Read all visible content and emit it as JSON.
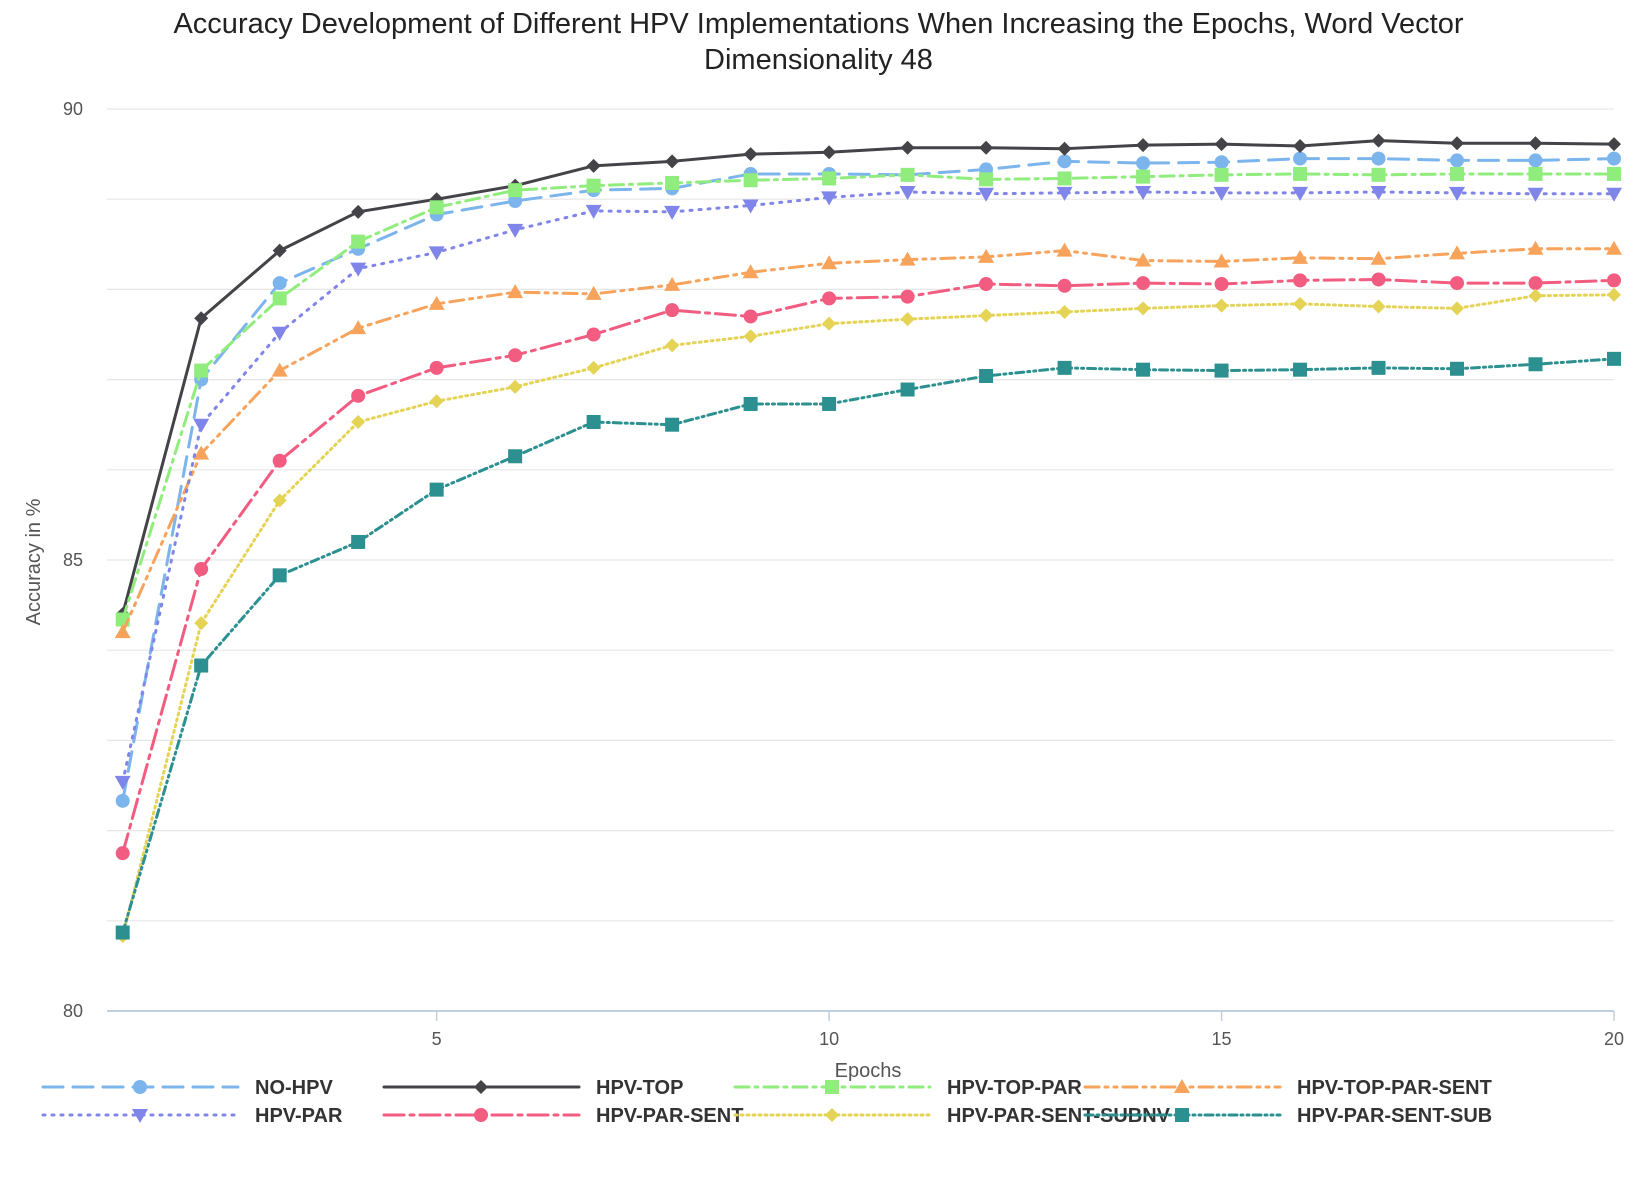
{
  "chart_data": {
    "type": "line",
    "title_line1": "Accuracy Development of Different HPV Implementations When Increasing the Epochs, Word Vector",
    "title_line2": "Dimensionality 48",
    "xlabel": "Epochs",
    "ylabel": "Accuracy in %",
    "xlim": [
      0.8,
      20
    ],
    "ylim": [
      80,
      90
    ],
    "xticks": [
      5,
      10,
      15,
      20
    ],
    "yticks": [
      80,
      85,
      90
    ],
    "grid": true,
    "legend_position": "bottom",
    "x": [
      1,
      2,
      3,
      4,
      5,
      6,
      7,
      8,
      9,
      10,
      11,
      12,
      13,
      14,
      15,
      16,
      17,
      18,
      19,
      20
    ],
    "series": [
      {
        "name": "NO-HPV",
        "color": "#7cb5ec",
        "dash": "20,10",
        "marker": "circle",
        "values": [
          82.33,
          87.0,
          88.07,
          88.45,
          88.83,
          88.98,
          89.1,
          89.12,
          89.28,
          89.28,
          89.27,
          89.33,
          89.42,
          89.4,
          89.41,
          89.45,
          89.45,
          89.43,
          89.43,
          89.45
        ]
      },
      {
        "name": "HPV-TOP",
        "color": "#434348",
        "dash": "",
        "marker": "diamond",
        "values": [
          84.4,
          87.68,
          88.43,
          88.86,
          89.0,
          89.15,
          89.37,
          89.42,
          89.5,
          89.52,
          89.57,
          89.57,
          89.56,
          89.6,
          89.61,
          89.59,
          89.65,
          89.62,
          89.62,
          89.61
        ]
      },
      {
        "name": "HPV-TOP-PAR",
        "color": "#90ed7d",
        "dash": "14,6,3,6",
        "marker": "square",
        "values": [
          84.34,
          87.1,
          87.9,
          88.53,
          88.91,
          89.1,
          89.15,
          89.18,
          89.21,
          89.23,
          89.27,
          89.22,
          89.23,
          89.25,
          89.27,
          89.28,
          89.27,
          89.28,
          89.28,
          89.28
        ]
      },
      {
        "name": "HPV-TOP-PAR-SENT",
        "color": "#f7a35c",
        "dash": "14,6,3,6,3,6",
        "marker": "triangle",
        "values": [
          84.2,
          86.18,
          87.1,
          87.57,
          87.84,
          87.97,
          87.95,
          88.05,
          88.19,
          88.29,
          88.33,
          88.36,
          88.43,
          88.32,
          88.31,
          88.35,
          88.34,
          88.4,
          88.45,
          88.45
        ]
      },
      {
        "name": "HPV-PAR",
        "color": "#8085e9",
        "dash": "2,7",
        "marker": "triangle-down",
        "values": [
          82.54,
          86.5,
          87.52,
          88.23,
          88.41,
          88.66,
          88.87,
          88.86,
          88.93,
          89.02,
          89.08,
          89.06,
          89.07,
          89.08,
          89.07,
          89.07,
          89.08,
          89.07,
          89.06,
          89.06
        ]
      },
      {
        "name": "HPV-PAR-SENT",
        "color": "#f15c80",
        "dash": "20,6,4,6",
        "marker": "circle",
        "values": [
          81.75,
          84.9,
          86.1,
          86.82,
          87.13,
          87.27,
          87.5,
          87.77,
          87.7,
          87.9,
          87.92,
          88.06,
          88.04,
          88.07,
          88.06,
          88.1,
          88.11,
          88.07,
          88.07,
          88.1
        ]
      },
      {
        "name": "HPV-PAR-SENT-SUBNV",
        "color": "#e4d354",
        "dash": "2,4",
        "marker": "diamond",
        "values": [
          80.83,
          84.3,
          85.66,
          86.53,
          86.76,
          86.92,
          87.13,
          87.38,
          87.48,
          87.62,
          87.67,
          87.71,
          87.75,
          87.79,
          87.82,
          87.84,
          87.81,
          87.79,
          87.93,
          87.94
        ]
      },
      {
        "name": "HPV-PAR-SENT-SUB",
        "color": "#2b908f",
        "dash": "8,4,2,4,2,4",
        "marker": "square",
        "values": [
          80.87,
          83.83,
          84.83,
          85.2,
          85.78,
          86.15,
          86.53,
          86.5,
          86.73,
          86.73,
          86.89,
          87.04,
          87.13,
          87.11,
          87.1,
          87.11,
          87.13,
          87.12,
          87.17,
          87.23
        ]
      }
    ]
  }
}
